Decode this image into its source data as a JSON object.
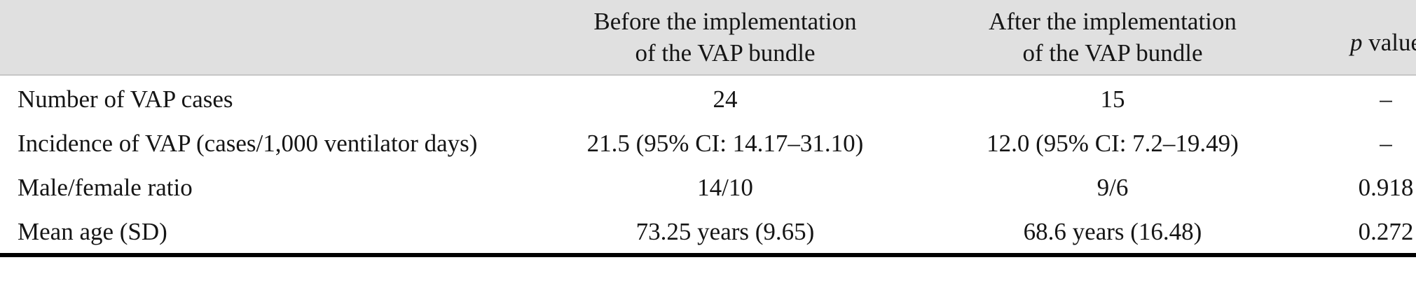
{
  "table": {
    "header": {
      "before": {
        "line1": "Before the implementation",
        "line2": "of the VAP bundle"
      },
      "after": {
        "line1": "After the implementation",
        "line2": "of the VAP bundle"
      },
      "p": {
        "symbol": "p",
        "rest": " value"
      }
    },
    "rows": [
      {
        "label": "Number of VAP cases",
        "before": "24",
        "after": "15",
        "p": "–"
      },
      {
        "label": "Incidence of VAP (cases/1,000 ventilator days)",
        "before": "21.5 (95% CI: 14.17–31.10)",
        "after": "12.0 (95% CI: 7.2–19.49)",
        "p": "–"
      },
      {
        "label": "Male/female ratio",
        "before": "14/10",
        "after": "9/6",
        "p": "0.918"
      },
      {
        "label": "Mean age (SD)",
        "before": "73.25 years (9.65)",
        "after": "68.6 years (16.48)",
        "p": "0.272"
      }
    ]
  },
  "colors": {
    "header_bg": "#e0e0e0",
    "text": "#151515",
    "bottom_rule": "#000000"
  },
  "chart_data": {
    "type": "table",
    "columns": [
      "",
      "Before the implementation of the VAP bundle",
      "After the implementation of the VAP bundle",
      "p value"
    ],
    "rows": [
      [
        "Number of VAP cases",
        "24",
        "15",
        "–"
      ],
      [
        "Incidence of VAP (cases/1,000 ventilator days)",
        "21.5 (95% CI: 14.17–31.10)",
        "12.0 (95% CI: 7.2–19.49)",
        "–"
      ],
      [
        "Male/female ratio",
        "14/10",
        "9/6",
        "0.918"
      ],
      [
        "Mean age (SD)",
        "73.25 years (9.65)",
        "68.6 years (16.48)",
        "0.272"
      ]
    ]
  }
}
